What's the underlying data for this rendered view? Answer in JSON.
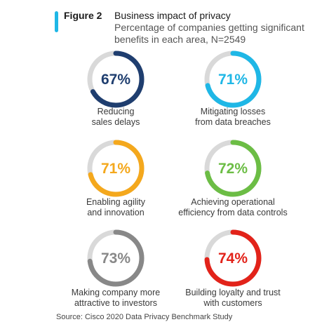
{
  "header": {
    "figure_label": "Figure 2",
    "title": "Business impact of privacy",
    "subtitle": "Percentage of companies getting significant benefits in each area, N=2549"
  },
  "colors": {
    "accent": "#1fb7e6",
    "track": "#d9d9d9"
  },
  "chart_data": {
    "type": "donut-grid",
    "title": "Business impact of privacy",
    "subtitle": "Percentage of companies getting significant benefits in each area, N=2549",
    "unit": "%",
    "items": [
      {
        "label": "Reducing sales delays",
        "label_lines": [
          "Reducing",
          "sales delays"
        ],
        "value": 67,
        "display": "67%",
        "color": "#1f3e6f"
      },
      {
        "label": "Mitigating losses from data breaches",
        "label_lines": [
          "Mitigating losses",
          "from data breaches"
        ],
        "value": 71,
        "display": "71%",
        "color": "#1fb7e6"
      },
      {
        "label": "Enabling agility and innovation",
        "label_lines": [
          "Enabling agility",
          "and innovation"
        ],
        "value": 71,
        "display": "71%",
        "color": "#f4a81d"
      },
      {
        "label": "Achieving operational efficiency from data controls",
        "label_lines": [
          "Achieving operational",
          "efficiency from data controls"
        ],
        "value": 72,
        "display": "72%",
        "color": "#6cbd45"
      },
      {
        "label": "Making company more attractive to investors",
        "label_lines": [
          "Making company more",
          "attractive to investors"
        ],
        "value": 73,
        "display": "73%",
        "color": "#888888"
      },
      {
        "label": "Building loyalty and trust with customers",
        "label_lines": [
          "Building loyalty and trust",
          "with customers"
        ],
        "value": 74,
        "display": "74%",
        "color": "#e2231a"
      }
    ]
  },
  "footer": {
    "source": "Source:  Cisco 2020 Data Privacy Benchmark Study"
  }
}
